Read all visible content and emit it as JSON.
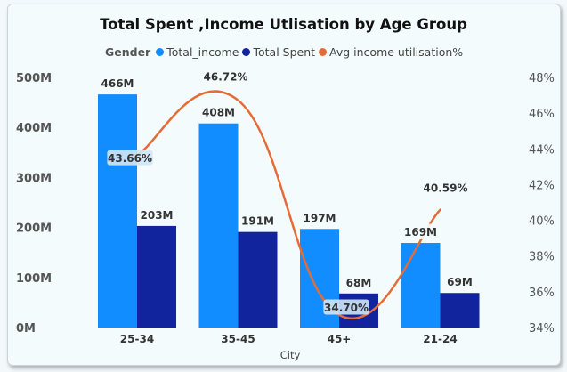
{
  "title": "Total Spent ,Income Utlisation by Age Group",
  "legend": {
    "title": "Gender",
    "items": [
      {
        "label": "Total_income",
        "color": "#118dff"
      },
      {
        "label": "Total Spent",
        "color": "#12239e"
      },
      {
        "label": "Avg income utilisation%",
        "color": "#e66c37"
      }
    ]
  },
  "chart_data": {
    "type": "bar",
    "title": "Total Spent ,Income Utlisation by Age Group",
    "xlabel": "City",
    "categories": [
      "25-34",
      "35-45",
      "45+",
      "21-24"
    ],
    "series": [
      {
        "name": "Total_income",
        "type": "bar",
        "axis": "left",
        "color": "#118dff",
        "values": [
          466,
          408,
          197,
          169
        ],
        "labels": [
          "466M",
          "408M",
          "197M",
          "169M"
        ]
      },
      {
        "name": "Total Spent",
        "type": "bar",
        "axis": "left",
        "color": "#12239e",
        "values": [
          203,
          191,
          68,
          69
        ],
        "labels": [
          "203M",
          "191M",
          "68M",
          "69M"
        ]
      },
      {
        "name": "Avg income utilisation%",
        "type": "line",
        "axis": "right",
        "color": "#e66c37",
        "values": [
          43.66,
          46.72,
          34.7,
          40.59
        ],
        "labels": [
          "43.66%",
          "46.72%",
          "34.70%",
          "40.59%"
        ]
      }
    ],
    "y_left": {
      "range": [
        0,
        500
      ],
      "ticks": [
        0,
        100,
        200,
        300,
        400,
        500
      ],
      "tick_labels": [
        "0M",
        "100M",
        "200M",
        "300M",
        "400M",
        "500M"
      ]
    },
    "y_right": {
      "range": [
        34,
        48
      ],
      "ticks": [
        34,
        36,
        38,
        40,
        42,
        44,
        46,
        48
      ],
      "tick_labels": [
        "34%",
        "36%",
        "38%",
        "40%",
        "42%",
        "44%",
        "46%",
        "48%"
      ]
    },
    "grid": false,
    "legend_position": "top-left"
  }
}
